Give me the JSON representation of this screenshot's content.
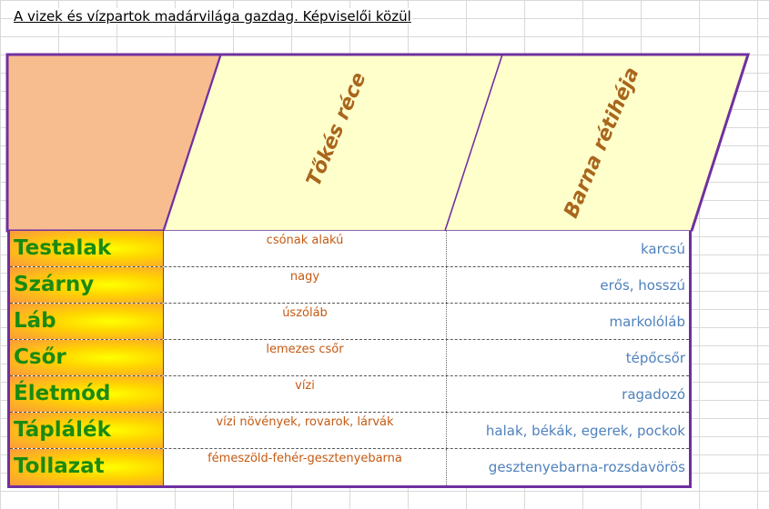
{
  "title": "A vizek és vízpartok madárvilága gazdag. Képviselői közül",
  "columns": [
    {
      "label": "Tőkés réce"
    },
    {
      "label": "Barna rétihéja"
    }
  ],
  "rows": [
    {
      "label": "Testalak",
      "tokes": "csónak alakú",
      "barna": "karcsú"
    },
    {
      "label": "Szárny",
      "tokes": "nagy",
      "barna": "erős, hosszú"
    },
    {
      "label": "Láb",
      "tokes": "úszóláb",
      "barna": "markolóláb"
    },
    {
      "label": "Csőr",
      "tokes": "lemezes csőr",
      "barna": "tépőcsőr"
    },
    {
      "label": "Életmód",
      "tokes": "vízi",
      "barna": "ragadozó"
    },
    {
      "label": "Táplálék",
      "tokes": "vízi növények, rovarok, lárvák",
      "barna": "halak, békák, egerek, pockok"
    },
    {
      "label": "Tollazat",
      "tokes": "fémeszöld-fehér-gesztenyebarna",
      "barna": "gesztenyebarna-rozsdavörös"
    }
  ],
  "colors": {
    "border": "#7030a0",
    "corner": "#f8bd8f",
    "header": "#ffffcc",
    "label_text": "#1a8a12",
    "tokes_text": "#c55a11",
    "barna_text": "#4f81bd",
    "header_text": "#a9661c"
  }
}
